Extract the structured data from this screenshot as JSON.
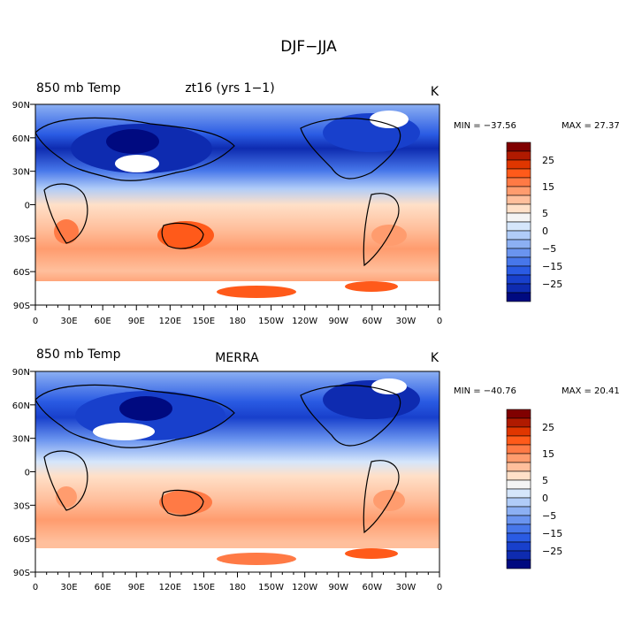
{
  "figure_title": "DJF−JJA",
  "colorbar": {
    "levels": [
      "25",
      "15",
      "5",
      "0",
      "−5",
      "−15",
      "−25"
    ],
    "colors": [
      "#800000",
      "#b01a00",
      "#e03600",
      "#ff5a1a",
      "#ff7a45",
      "#ff9c6e",
      "#ffbf9c",
      "#ffe0c8",
      "#f4f4f4",
      "#d5e6fb",
      "#b0ccf8",
      "#8cb0f3",
      "#6a94ef",
      "#4777ea",
      "#2a5be3",
      "#1840cc",
      "#0e2bb0",
      "#000a80"
    ]
  },
  "panels": [
    {
      "left_label": "850 mb Temp",
      "center_label": "zt16 (yrs 1−1)",
      "units": "K",
      "min_label": "MIN = −37.56",
      "max_label": "MAX =  27.37"
    },
    {
      "left_label": "850 mb Temp",
      "center_label": "MERRA",
      "units": "K",
      "min_label": "MIN = −40.76",
      "max_label": "MAX =  20.41"
    }
  ],
  "chart_data": [
    {
      "type": "heatmap",
      "title": "850 mb Temp  zt16 (yrs 1−1)",
      "units": "K",
      "min": -37.56,
      "max": 27.37,
      "x_ticks": [
        "0",
        "30E",
        "60E",
        "90E",
        "120E",
        "150E",
        "180",
        "150W",
        "120W",
        "90W",
        "60W",
        "30W",
        "0"
      ],
      "y_ticks": [
        "90N",
        "60N",
        "30N",
        "0",
        "30S",
        "60S",
        "90S"
      ],
      "xlim": [
        0,
        360
      ],
      "ylim": [
        -90,
        90
      ],
      "zonal_mean_profile": {
        "lat": [
          90,
          75,
          60,
          45,
          30,
          15,
          0,
          -15,
          -30,
          -45,
          -60,
          -75,
          -90
        ],
        "value": [
          -12,
          -22,
          -27,
          -22,
          -14,
          -6,
          0,
          4,
          8,
          8,
          6,
          5,
          0
        ]
      }
    },
    {
      "type": "heatmap",
      "title": "850 mb Temp  MERRA",
      "units": "K",
      "min": -40.76,
      "max": 20.41,
      "x_ticks": [
        "0",
        "30E",
        "60E",
        "90E",
        "120E",
        "150E",
        "180",
        "150W",
        "120W",
        "90W",
        "60W",
        "30W",
        "0"
      ],
      "y_ticks": [
        "90N",
        "60N",
        "30N",
        "0",
        "30S",
        "60S",
        "90S"
      ],
      "xlim": [
        0,
        360
      ],
      "ylim": [
        -90,
        90
      ],
      "zonal_mean_profile": {
        "lat": [
          90,
          75,
          60,
          45,
          30,
          15,
          0,
          -15,
          -30,
          -45,
          -60,
          -75,
          -90
        ],
        "value": [
          -10,
          -21,
          -26,
          -21,
          -12,
          -4,
          1,
          4,
          7,
          7,
          6,
          5,
          0
        ]
      }
    }
  ]
}
